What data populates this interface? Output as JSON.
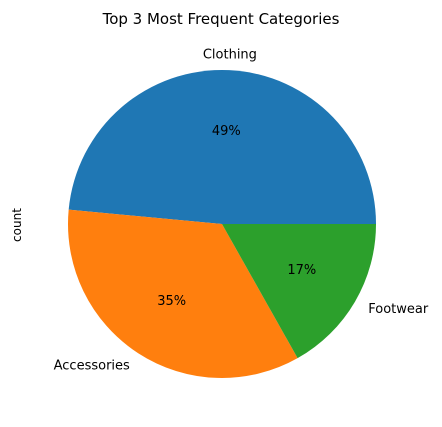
{
  "chart_data": {
    "type": "pie",
    "title": "Top 3 Most Frequent Categories",
    "ylabel": "count",
    "categories": [
      "Clothing",
      "Accessories",
      "Footwear"
    ],
    "values": [
      49,
      35,
      17
    ],
    "percent_labels": [
      "49%",
      "35%",
      "17%"
    ],
    "colors": [
      "#1f77b4",
      "#ff7f0e",
      "#2ca02c"
    ],
    "start_angle_deg": 0,
    "direction": "counterclockwise"
  }
}
